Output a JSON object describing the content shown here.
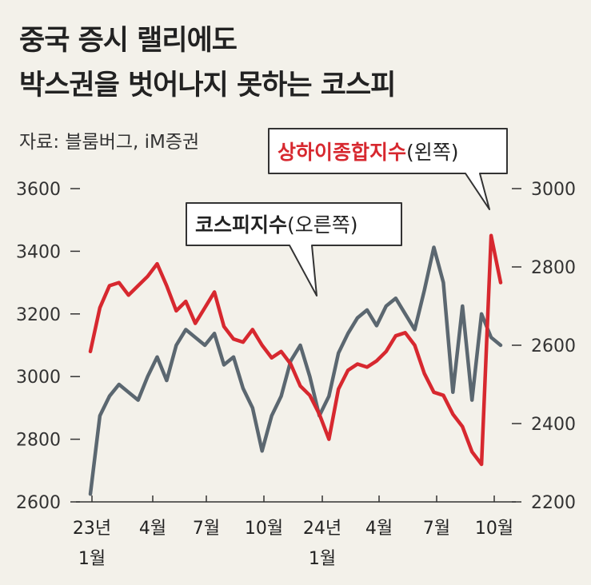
{
  "title": {
    "line1": "중국 증시 랠리에도",
    "line2": "박스권을 벗어나지 못하는 코스피"
  },
  "source": "자료: 블룸버그, iM증권",
  "colors": {
    "background": "#f3f1ea",
    "kospi": "#5b6770",
    "shanghai": "#d7282f",
    "axis": "#333333"
  },
  "chart_data": {
    "type": "line",
    "x_labels": [
      {
        "line1": "23년",
        "line2": "1월"
      },
      {
        "line1": "4월",
        "line2": ""
      },
      {
        "line1": "7월",
        "line2": ""
      },
      {
        "line1": "10월",
        "line2": ""
      },
      {
        "line1": "24년",
        "line2": "1월"
      },
      {
        "line1": "4월",
        "line2": ""
      },
      {
        "line1": "7월",
        "line2": ""
      },
      {
        "line1": "10월",
        "line2": ""
      }
    ],
    "left_axis": {
      "ticks": [
        3600,
        3400,
        3200,
        3000,
        2800,
        2600
      ],
      "range": [
        2600,
        3600
      ]
    },
    "right_axis": {
      "ticks": [
        3000,
        2800,
        2600,
        2400,
        2200
      ],
      "range": [
        2200,
        3000
      ]
    },
    "grid": false,
    "x": [
      "2023-01",
      "2023-01",
      "2023-02",
      "2023-02",
      "2023-03",
      "2023-03",
      "2023-04",
      "2023-04",
      "2023-05",
      "2023-05",
      "2023-06",
      "2023-06",
      "2023-07",
      "2023-07",
      "2023-08",
      "2023-08",
      "2023-09",
      "2023-09",
      "2023-10",
      "2023-10",
      "2023-11",
      "2023-11",
      "2023-12",
      "2023-12",
      "2024-01",
      "2024-01",
      "2024-02",
      "2024-02",
      "2024-03",
      "2024-03",
      "2024-04",
      "2024-04",
      "2024-05",
      "2024-05",
      "2024-06",
      "2024-06",
      "2024-07",
      "2024-07",
      "2024-08",
      "2024-08",
      "2024-09",
      "2024-09",
      "2024-10",
      "2024-10"
    ],
    "series": [
      {
        "name": "상하이종합지수",
        "label_suffix": "(왼쪽)",
        "axis": "left",
        "values": [
          3080,
          3220,
          3290,
          3300,
          3260,
          3290,
          3320,
          3360,
          3290,
          3210,
          3240,
          3170,
          3220,
          3270,
          3160,
          3120,
          3110,
          3150,
          3100,
          3060,
          3080,
          3040,
          2970,
          2940,
          2880,
          2800,
          2960,
          3020,
          3040,
          3030,
          3050,
          3080,
          3130,
          3140,
          3100,
          3010,
          2950,
          2940,
          2880,
          2840,
          2760,
          2720,
          3450,
          3300
        ]
      },
      {
        "name": "코스피지수",
        "label_suffix": "(오른쪽)",
        "axis": "right",
        "values": [
          2220,
          2420,
          2470,
          2500,
          2480,
          2460,
          2520,
          2570,
          2510,
          2600,
          2640,
          2620,
          2600,
          2630,
          2550,
          2570,
          2490,
          2440,
          2330,
          2420,
          2470,
          2560,
          2600,
          2520,
          2420,
          2470,
          2580,
          2630,
          2670,
          2690,
          2650,
          2700,
          2720,
          2680,
          2640,
          2740,
          2850,
          2760,
          2480,
          2700,
          2460,
          2680,
          2620,
          2600
        ]
      }
    ]
  },
  "callouts": {
    "shanghai_name": "상하이종합지수",
    "shanghai_suffix": "(왼쪽)",
    "kospi_name": "코스피지수",
    "kospi_suffix": "(오른쪽)"
  }
}
